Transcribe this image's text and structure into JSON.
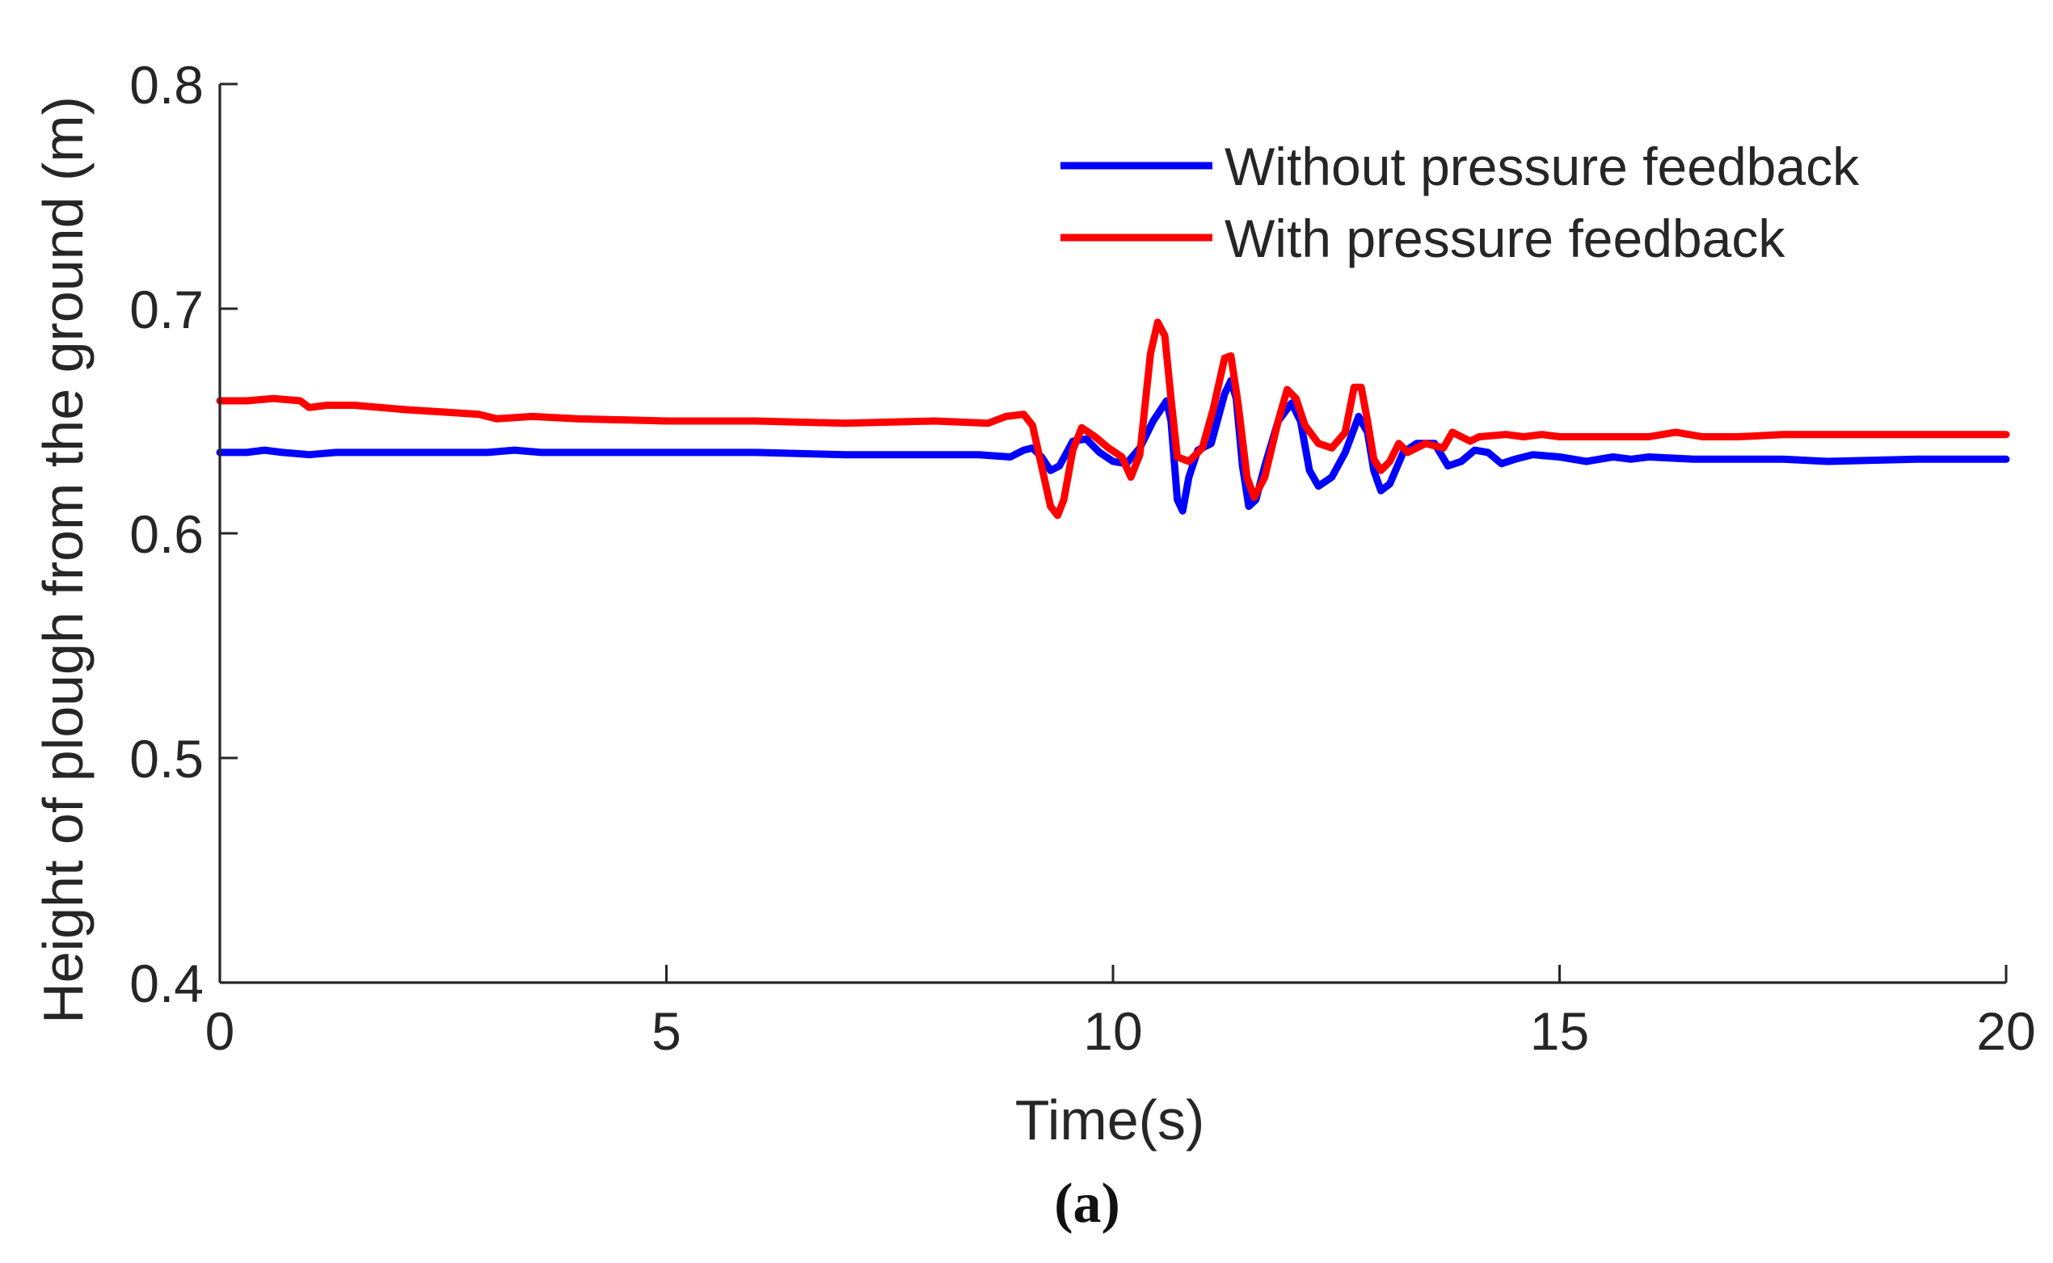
{
  "chart_data": {
    "type": "line",
    "title": "",
    "caption": "(a)",
    "xlabel": "Time(s)",
    "ylabel": "Height of plough from the ground (m)",
    "xlim": [
      0,
      20
    ],
    "ylim": [
      0.4,
      0.8
    ],
    "xticks": [
      0,
      5,
      10,
      15,
      20
    ],
    "xtick_labels": [
      "0",
      "5",
      "10",
      "15",
      "20"
    ],
    "yticks": [
      0.4,
      0.5,
      0.6,
      0.7,
      0.8
    ],
    "ytick_labels": [
      "0.4",
      "0.5",
      "0.6",
      "0.7",
      "0.8"
    ],
    "grid": false,
    "legend_position": "top-right",
    "series": [
      {
        "name": "Without pressure feedback",
        "color": "#0000ff",
        "points": [
          [
            0,
            0.636
          ],
          [
            0.3,
            0.636
          ],
          [
            0.5,
            0.637
          ],
          [
            0.7,
            0.636
          ],
          [
            1.0,
            0.635
          ],
          [
            1.3,
            0.636
          ],
          [
            2.0,
            0.636
          ],
          [
            2.5,
            0.636
          ],
          [
            3.0,
            0.636
          ],
          [
            3.3,
            0.637
          ],
          [
            3.6,
            0.636
          ],
          [
            4.0,
            0.636
          ],
          [
            5.0,
            0.636
          ],
          [
            6.0,
            0.636
          ],
          [
            7.0,
            0.635
          ],
          [
            8.0,
            0.635
          ],
          [
            8.5,
            0.635
          ],
          [
            8.85,
            0.634
          ],
          [
            9.0,
            0.637
          ],
          [
            9.1,
            0.638
          ],
          [
            9.2,
            0.634
          ],
          [
            9.3,
            0.628
          ],
          [
            9.4,
            0.63
          ],
          [
            9.55,
            0.641
          ],
          [
            9.7,
            0.642
          ],
          [
            9.85,
            0.636
          ],
          [
            10.0,
            0.632
          ],
          [
            10.15,
            0.631
          ],
          [
            10.3,
            0.638
          ],
          [
            10.45,
            0.65
          ],
          [
            10.6,
            0.659
          ],
          [
            10.65,
            0.65
          ],
          [
            10.72,
            0.615
          ],
          [
            10.78,
            0.61
          ],
          [
            10.85,
            0.625
          ],
          [
            10.95,
            0.637
          ],
          [
            11.1,
            0.64
          ],
          [
            11.25,
            0.662
          ],
          [
            11.32,
            0.668
          ],
          [
            11.38,
            0.66
          ],
          [
            11.45,
            0.63
          ],
          [
            11.52,
            0.612
          ],
          [
            11.6,
            0.615
          ],
          [
            11.7,
            0.63
          ],
          [
            11.85,
            0.65
          ],
          [
            12.0,
            0.658
          ],
          [
            12.1,
            0.65
          ],
          [
            12.2,
            0.628
          ],
          [
            12.3,
            0.621
          ],
          [
            12.45,
            0.625
          ],
          [
            12.6,
            0.636
          ],
          [
            12.75,
            0.652
          ],
          [
            12.85,
            0.645
          ],
          [
            12.92,
            0.628
          ],
          [
            13.0,
            0.619
          ],
          [
            13.1,
            0.622
          ],
          [
            13.25,
            0.636
          ],
          [
            13.4,
            0.64
          ],
          [
            13.6,
            0.64
          ],
          [
            13.75,
            0.63
          ],
          [
            13.9,
            0.632
          ],
          [
            14.05,
            0.637
          ],
          [
            14.2,
            0.636
          ],
          [
            14.35,
            0.631
          ],
          [
            14.5,
            0.633
          ],
          [
            14.7,
            0.635
          ],
          [
            15.0,
            0.634
          ],
          [
            15.3,
            0.632
          ],
          [
            15.6,
            0.634
          ],
          [
            15.8,
            0.633
          ],
          [
            16.0,
            0.634
          ],
          [
            16.5,
            0.633
          ],
          [
            17.0,
            0.633
          ],
          [
            17.5,
            0.633
          ],
          [
            18.0,
            0.632
          ],
          [
            19.0,
            0.633
          ],
          [
            20.0,
            0.633
          ]
        ]
      },
      {
        "name": "With pressure feedback",
        "color": "#ff0000",
        "points": [
          [
            0,
            0.659
          ],
          [
            0.3,
            0.659
          ],
          [
            0.6,
            0.66
          ],
          [
            0.9,
            0.659
          ],
          [
            1.0,
            0.656
          ],
          [
            1.2,
            0.657
          ],
          [
            1.5,
            0.657
          ],
          [
            1.8,
            0.656
          ],
          [
            2.1,
            0.655
          ],
          [
            2.5,
            0.654
          ],
          [
            2.9,
            0.653
          ],
          [
            3.1,
            0.651
          ],
          [
            3.5,
            0.652
          ],
          [
            4.0,
            0.651
          ],
          [
            5.0,
            0.65
          ],
          [
            6.0,
            0.65
          ],
          [
            7.0,
            0.649
          ],
          [
            8.0,
            0.65
          ],
          [
            8.6,
            0.649
          ],
          [
            8.8,
            0.652
          ],
          [
            9.0,
            0.653
          ],
          [
            9.1,
            0.648
          ],
          [
            9.2,
            0.63
          ],
          [
            9.3,
            0.612
          ],
          [
            9.38,
            0.608
          ],
          [
            9.45,
            0.615
          ],
          [
            9.55,
            0.637
          ],
          [
            9.65,
            0.647
          ],
          [
            9.8,
            0.643
          ],
          [
            9.95,
            0.638
          ],
          [
            10.1,
            0.634
          ],
          [
            10.2,
            0.625
          ],
          [
            10.3,
            0.635
          ],
          [
            10.42,
            0.68
          ],
          [
            10.5,
            0.694
          ],
          [
            10.58,
            0.688
          ],
          [
            10.65,
            0.66
          ],
          [
            10.72,
            0.634
          ],
          [
            10.85,
            0.632
          ],
          [
            11.0,
            0.638
          ],
          [
            11.12,
            0.655
          ],
          [
            11.25,
            0.678
          ],
          [
            11.32,
            0.679
          ],
          [
            11.4,
            0.658
          ],
          [
            11.5,
            0.625
          ],
          [
            11.58,
            0.616
          ],
          [
            11.7,
            0.625
          ],
          [
            11.85,
            0.65
          ],
          [
            11.95,
            0.664
          ],
          [
            12.05,
            0.66
          ],
          [
            12.15,
            0.648
          ],
          [
            12.3,
            0.64
          ],
          [
            12.45,
            0.638
          ],
          [
            12.6,
            0.645
          ],
          [
            12.7,
            0.665
          ],
          [
            12.78,
            0.665
          ],
          [
            12.85,
            0.65
          ],
          [
            12.92,
            0.633
          ],
          [
            13.0,
            0.628
          ],
          [
            13.1,
            0.632
          ],
          [
            13.2,
            0.64
          ],
          [
            13.3,
            0.636
          ],
          [
            13.5,
            0.64
          ],
          [
            13.7,
            0.638
          ],
          [
            13.8,
            0.645
          ],
          [
            13.9,
            0.643
          ],
          [
            14.0,
            0.641
          ],
          [
            14.1,
            0.643
          ],
          [
            14.4,
            0.644
          ],
          [
            14.6,
            0.643
          ],
          [
            14.8,
            0.644
          ],
          [
            15.0,
            0.643
          ],
          [
            15.5,
            0.643
          ],
          [
            16.0,
            0.643
          ],
          [
            16.3,
            0.645
          ],
          [
            16.6,
            0.643
          ],
          [
            17.0,
            0.643
          ],
          [
            17.5,
            0.644
          ],
          [
            18.0,
            0.644
          ],
          [
            19.0,
            0.644
          ],
          [
            20.0,
            0.644
          ]
        ]
      }
    ]
  }
}
